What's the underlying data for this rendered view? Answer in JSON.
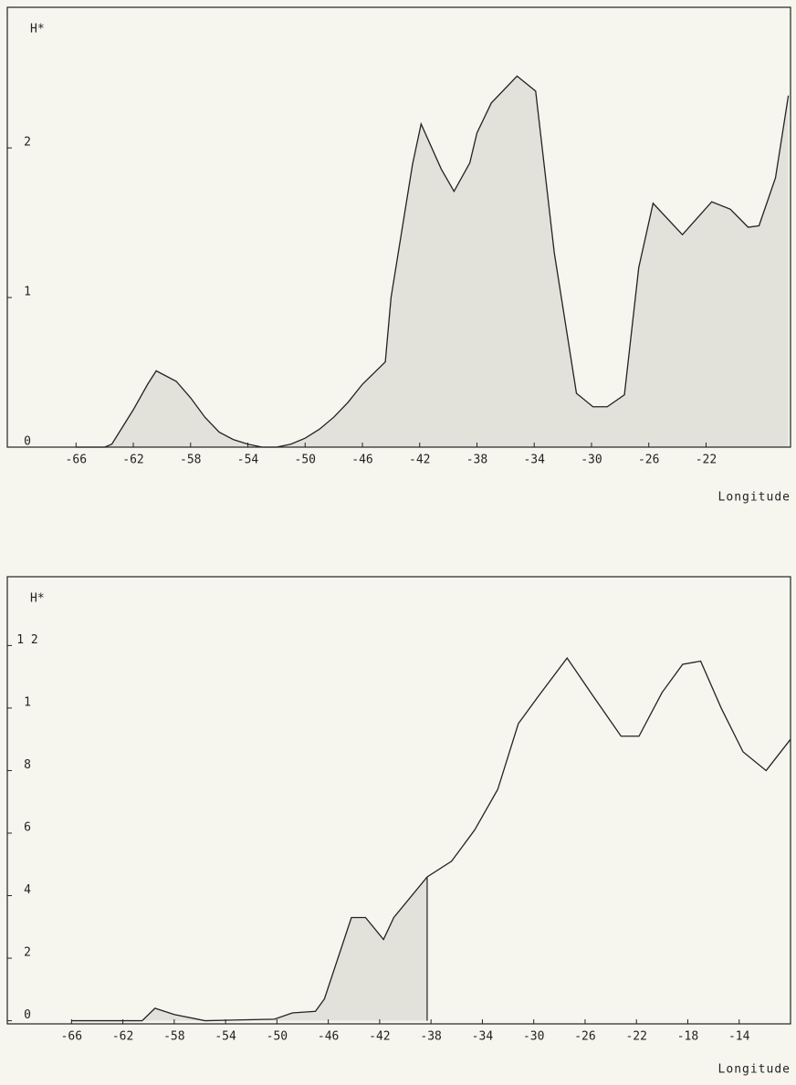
{
  "chart_data": [
    {
      "type": "line",
      "xlabel": "Longitude",
      "ylabel": "H*",
      "color": "#222222",
      "fill_color": "#e2e2da",
      "xlim": [
        -70.8,
        -16.1
      ],
      "ylim": [
        0,
        2.94
      ],
      "xticks": [
        -66,
        -62,
        -58,
        -54,
        -50,
        -46,
        -42,
        -38,
        -34,
        -30,
        -26,
        -22
      ],
      "yticks": [
        0,
        1,
        2
      ],
      "fill_xlim": [
        -70.8,
        -16.1
      ],
      "x": [
        -66,
        -64,
        -63.5,
        -62,
        -61,
        -60.4,
        -59,
        -58,
        -57,
        -56,
        -55,
        -54,
        -53,
        -52,
        -51,
        -50,
        -49,
        -48,
        -47,
        -46,
        -44.4,
        -44,
        -42.5,
        -41.9,
        -40.5,
        -39.6,
        -38.5,
        -38,
        -37,
        -35.2,
        -33.9,
        -32.6,
        -31.05,
        -29.9,
        -28.9,
        -27.7,
        -26.7,
        -25.7,
        -23.65,
        -21.6,
        -20.3,
        -19.06,
        -18.3,
        -17.15,
        -16.25
      ],
      "values": [
        0,
        0,
        0.02,
        0.25,
        0.42,
        0.51,
        0.44,
        0.33,
        0.2,
        0.1,
        0.05,
        0.02,
        0,
        0,
        0.02,
        0.06,
        0.12,
        0.2,
        0.3,
        0.42,
        0.57,
        1.0,
        1.89,
        2.16,
        1.86,
        1.71,
        1.9,
        2.1,
        2.3,
        2.48,
        2.38,
        1.3,
        0.36,
        0.27,
        0.27,
        0.35,
        1.2,
        1.63,
        1.42,
        1.64,
        1.59,
        1.47,
        1.48,
        1.8,
        2.35
      ]
    },
    {
      "type": "line",
      "xlabel": "Longitude",
      "ylabel": "H*",
      "color": "#222222",
      "fill_color": "#e2e2da",
      "xlim": [
        -71,
        -10
      ],
      "ylim": [
        -0.1,
        14.2
      ],
      "xticks": [
        -66,
        -62,
        -58,
        -54,
        -50,
        -46,
        -42,
        -38,
        -34,
        -30,
        -26,
        -22,
        -18,
        -14
      ],
      "yticks": [
        0,
        2,
        4,
        6,
        8,
        {
          "value": 10,
          "label": "1"
        },
        {
          "value": 12,
          "label": "1 2"
        }
      ],
      "fill_xlim": [
        -71,
        -38.3
      ],
      "x": [
        -66,
        -60.5,
        -59.5,
        -58,
        -55.6,
        -50.2,
        -48.8,
        -47,
        -46.3,
        -44.2,
        -43.1,
        -41.7,
        -40.9,
        -38.3,
        -36.4,
        -34.6,
        -32.8,
        -31.2,
        -29.6,
        -27.4,
        -25.4,
        -23.2,
        -21.8,
        -20,
        -18.4,
        -17,
        -15.4,
        -13.7,
        -11.9,
        -10
      ],
      "values": [
        0,
        0,
        0.4,
        0.2,
        0,
        0.05,
        0.25,
        0.3,
        0.7,
        3.3,
        3.3,
        2.6,
        3.3,
        4.6,
        5.1,
        6.1,
        7.4,
        9.5,
        10.4,
        11.6,
        10.4,
        9.1,
        9.1,
        10.5,
        11.4,
        11.5,
        10.0,
        8.6,
        8.0,
        9.0
      ]
    }
  ]
}
